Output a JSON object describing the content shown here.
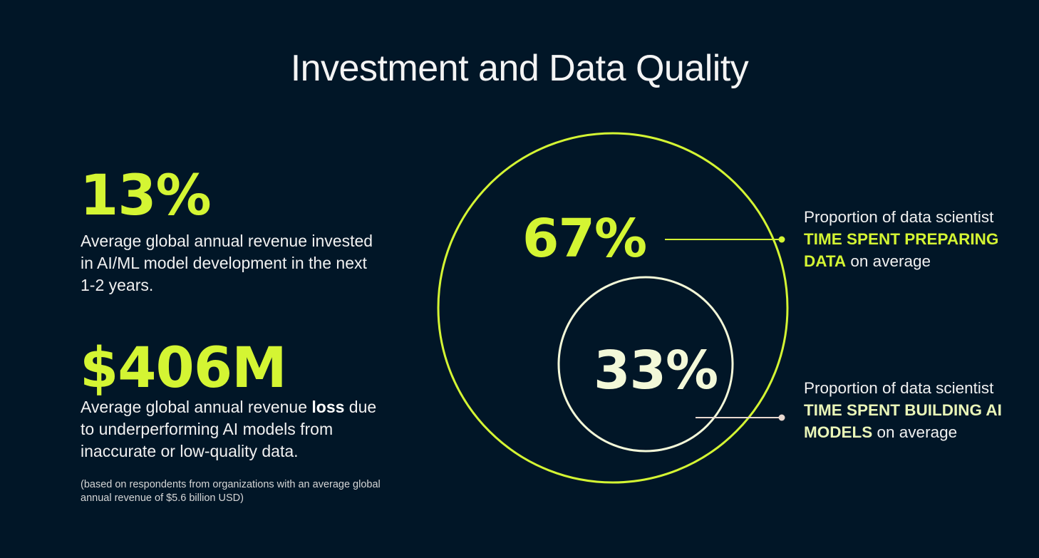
{
  "title": "Investment and Data Quality",
  "left": {
    "stat1": {
      "value": "13%",
      "desc": "Average global annual revenue invested in AI/ML model development in the next 1-2 years."
    },
    "stat2": {
      "value": "$406M",
      "desc_before": "Average global annual revenue ",
      "desc_strong": "loss",
      "desc_after": " due to underperforming AI models from inaccurate or low-quality data."
    },
    "footnote": "(based on respondents from organizations with an average global annual revenue of $5.6 billion USD)"
  },
  "diagram": {
    "outer": {
      "value": "67%",
      "callout_before": "Proportion of data scientist ",
      "callout_highlight": "TIME SPENT PREPARING DATA",
      "callout_after": " on average"
    },
    "inner": {
      "value": "33%",
      "callout_before": "Proportion of data scientist ",
      "callout_highlight": "TIME SPENT BUILDING AI MODELS",
      "callout_after": " on average"
    }
  },
  "colors": {
    "background": "#011627",
    "accent": "#d4f533",
    "accent_light": "#f3f8d8",
    "text": "#f1f1f1"
  }
}
